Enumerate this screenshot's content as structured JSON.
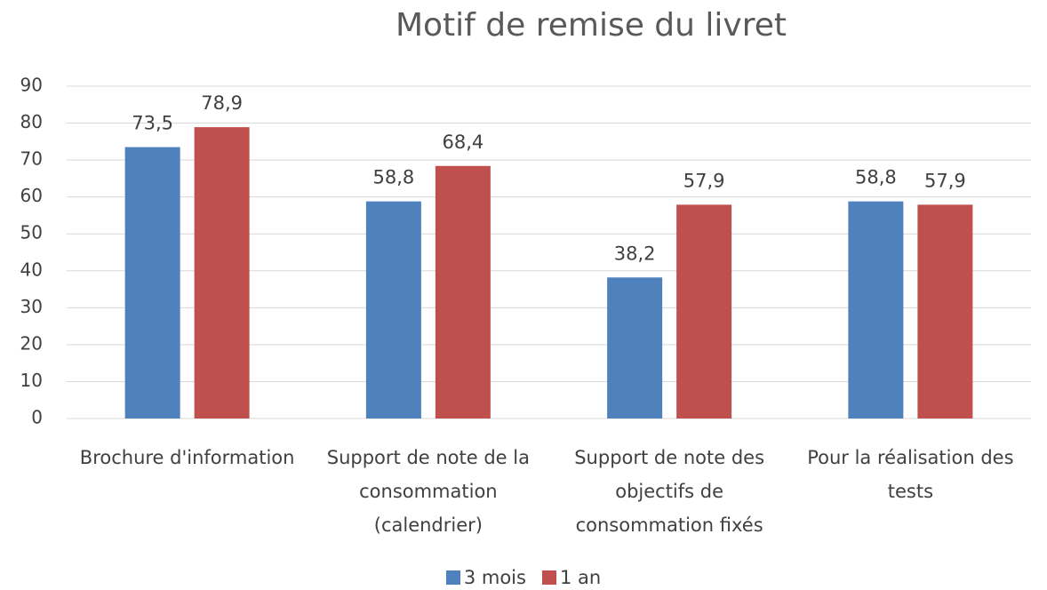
{
  "chart_data": {
    "type": "bar",
    "title": "Motif de remise du livret",
    "categories": [
      "Brochure d'information",
      "Support de note de la consommation (calendrier)",
      "Support de note des objectifs de consommation fixés",
      "Pour la réalisation des tests"
    ],
    "series": [
      {
        "name": "3 mois",
        "color": "#4f81bd",
        "values": [
          73.5,
          58.8,
          38.2,
          58.8
        ],
        "value_labels": [
          "73,5",
          "58,8",
          "38,2",
          "58,8"
        ]
      },
      {
        "name": "1 an",
        "color": "#c0504d",
        "values": [
          78.9,
          68.4,
          57.9,
          57.9
        ],
        "value_labels": [
          "78,9",
          "68,4",
          "57,9",
          "57,9"
        ]
      }
    ],
    "ylim": [
      0,
      90
    ],
    "yticks": [
      0,
      10,
      20,
      30,
      40,
      50,
      60,
      70,
      80,
      90
    ],
    "grid": true,
    "legend": "bottom"
  }
}
